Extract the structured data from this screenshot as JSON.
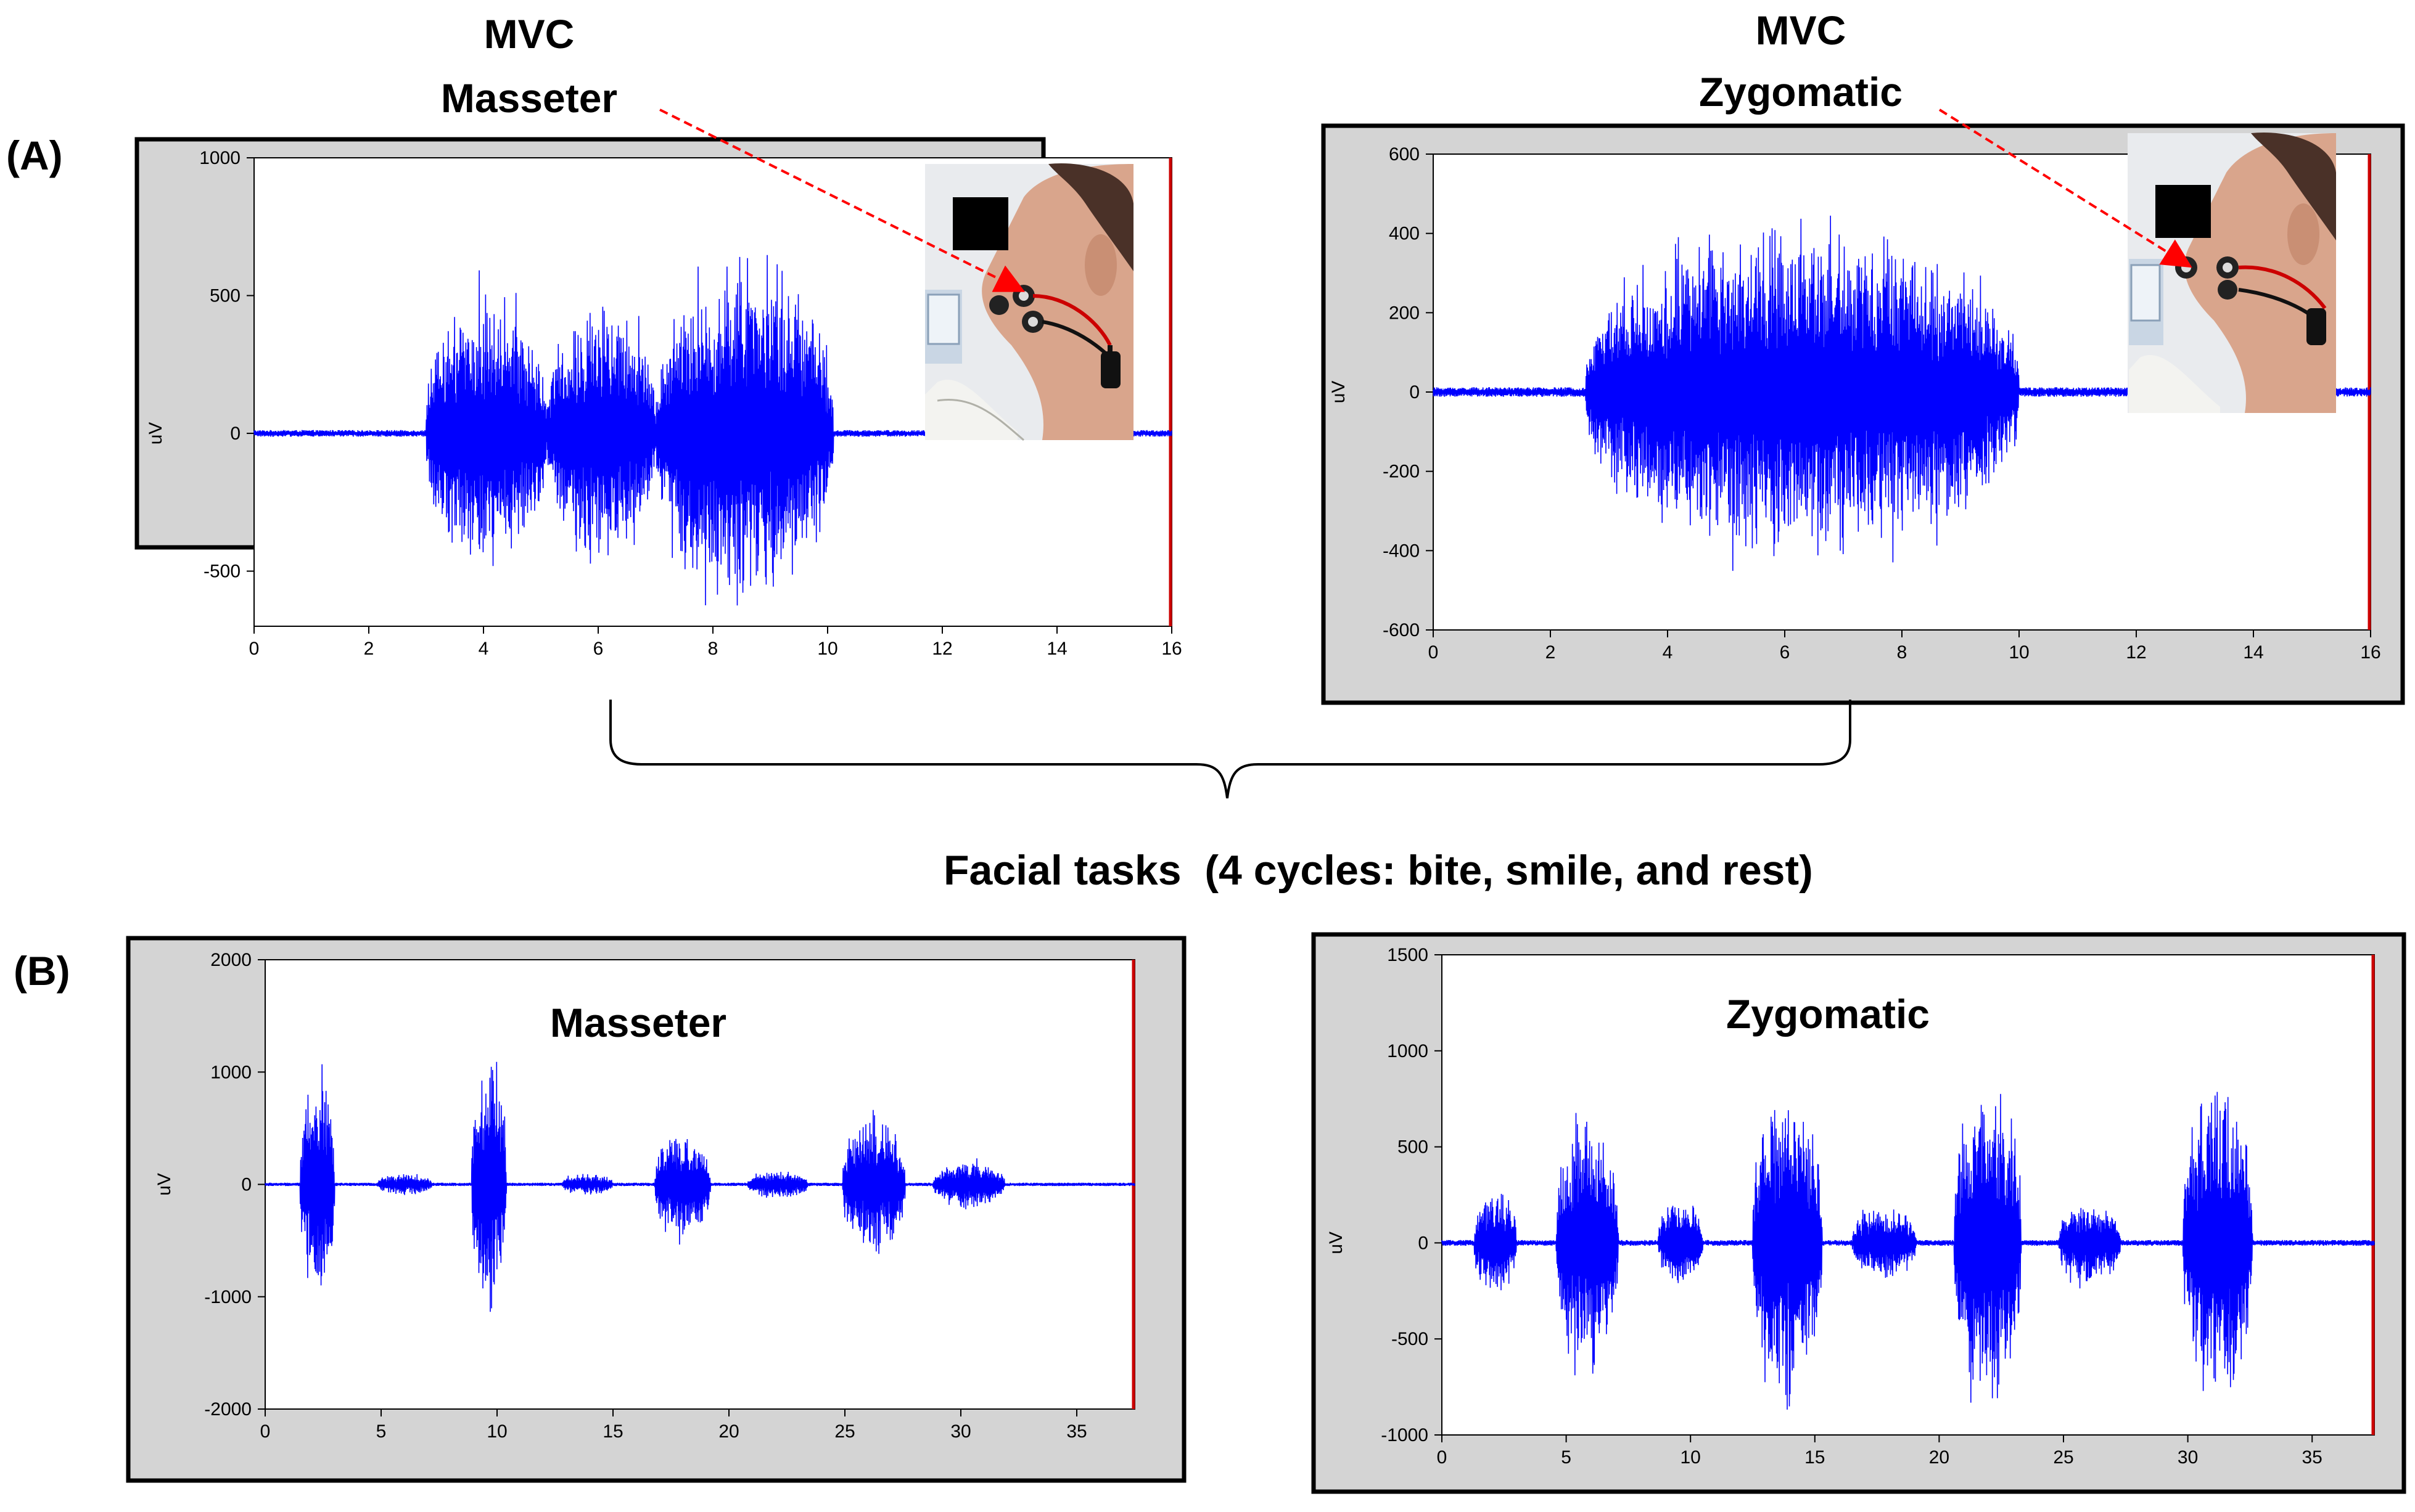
{
  "labels": {
    "panel_a": "(A)",
    "panel_b": "(B)",
    "mvc_masseter_line1": "MVC",
    "mvc_masseter_line2": "Masseter",
    "mvc_zygomatic_line1": "MVC",
    "mvc_zygomatic_line2": "Zygomatic",
    "facial_tasks": "Facial tasks  (4 cycles: bite, smile, and rest)"
  },
  "colors": {
    "signal": "#0000ff",
    "axis_end": "#cc0000",
    "frame_bg": "#d4d4d4",
    "arrow": "#ff0000"
  },
  "chart_data": [
    {
      "id": "a-masseter",
      "type": "line",
      "ylabel": "uV",
      "xlim": [
        0,
        16
      ],
      "ylim": [
        -700,
        1000
      ],
      "xticks": [
        0,
        2,
        4,
        6,
        8,
        10,
        12,
        14,
        16
      ],
      "xtick_labels": [
        "0",
        "2",
        "4",
        "6",
        "8",
        "10",
        "12",
        "14",
        "16"
      ],
      "yticks": [
        1000,
        500,
        0,
        -500
      ],
      "ytick_labels": [
        "1000",
        "500",
        "0",
        "-500"
      ],
      "inset_photo": "face-electrodes-masseter",
      "bursts": [
        {
          "start": 3.0,
          "end": 5.1,
          "amplitude": 600
        },
        {
          "start": 5.1,
          "end": 7.0,
          "amplitude": 560
        },
        {
          "start": 7.0,
          "end": 10.1,
          "amplitude": 700
        }
      ],
      "baseline_noise": 12
    },
    {
      "id": "a-zygomatic",
      "type": "line",
      "ylabel": "uV",
      "xlim": [
        0,
        16
      ],
      "ylim": [
        -600,
        600
      ],
      "xticks": [
        0,
        2,
        4,
        6,
        8,
        10,
        12,
        14,
        16
      ],
      "xtick_labels": [
        "0",
        "2",
        "4",
        "6",
        "8",
        "10",
        "12",
        "14",
        "16"
      ],
      "yticks": [
        600,
        400,
        200,
        0,
        -200,
        -400,
        -600
      ],
      "ytick_labels": [
        "600",
        "400",
        "200",
        "0",
        "-200",
        "-400",
        "-600"
      ],
      "inset_photo": "face-electrodes-zygomatic",
      "bursts": [
        {
          "start": 2.6,
          "end": 10.0,
          "amplitude": 480
        }
      ],
      "baseline_noise": 12
    },
    {
      "id": "b-masseter",
      "type": "line",
      "title": "Masseter",
      "ylabel": "uV",
      "xlim": [
        0,
        37.5
      ],
      "ylim": [
        -2000,
        2000
      ],
      "xticks": [
        0,
        5,
        10,
        15,
        20,
        25,
        30,
        35
      ],
      "xtick_labels": [
        "0",
        "5",
        "10",
        "15",
        "20",
        "25",
        "30",
        "35"
      ],
      "yticks": [
        2000,
        1000,
        0,
        -1000,
        -2000
      ],
      "ytick_labels": [
        "2000",
        "1000",
        "0",
        "-1000",
        "-2000"
      ],
      "bursts": [
        {
          "start": 1.5,
          "end": 3.0,
          "amplitude": 1150
        },
        {
          "start": 4.8,
          "end": 7.2,
          "amplitude": 110
        },
        {
          "start": 8.9,
          "end": 10.4,
          "amplitude": 1400
        },
        {
          "start": 12.8,
          "end": 15.0,
          "amplitude": 110
        },
        {
          "start": 16.8,
          "end": 19.2,
          "amplitude": 560
        },
        {
          "start": 20.8,
          "end": 23.4,
          "amplitude": 150
        },
        {
          "start": 24.9,
          "end": 27.6,
          "amplitude": 720
        },
        {
          "start": 28.8,
          "end": 31.9,
          "amplitude": 240
        }
      ],
      "baseline_noise": 15
    },
    {
      "id": "b-zygomatic",
      "type": "line",
      "title": "Zygomatic",
      "ylabel": "uV",
      "xlim": [
        0,
        37.5
      ],
      "ylim": [
        -1000,
        1500
      ],
      "xticks": [
        0,
        5,
        10,
        15,
        20,
        25,
        30,
        35
      ],
      "xtick_labels": [
        "0",
        "5",
        "10",
        "15",
        "20",
        "25",
        "30",
        "35"
      ],
      "yticks": [
        1500,
        1000,
        500,
        0,
        -500,
        -1000
      ],
      "ytick_labels": [
        "1500",
        "1000",
        "500",
        "0",
        "-500",
        "-1000"
      ],
      "bursts": [
        {
          "start": 1.3,
          "end": 3.0,
          "amplitude": 330
        },
        {
          "start": 4.6,
          "end": 7.1,
          "amplitude": 760
        },
        {
          "start": 8.7,
          "end": 10.5,
          "amplitude": 280
        },
        {
          "start": 12.5,
          "end": 15.3,
          "amplitude": 940
        },
        {
          "start": 16.5,
          "end": 19.1,
          "amplitude": 220
        },
        {
          "start": 20.6,
          "end": 23.3,
          "amplitude": 1000
        },
        {
          "start": 24.8,
          "end": 27.3,
          "amplitude": 260
        },
        {
          "start": 29.8,
          "end": 32.6,
          "amplitude": 1000
        }
      ],
      "baseline_noise": 15
    }
  ]
}
